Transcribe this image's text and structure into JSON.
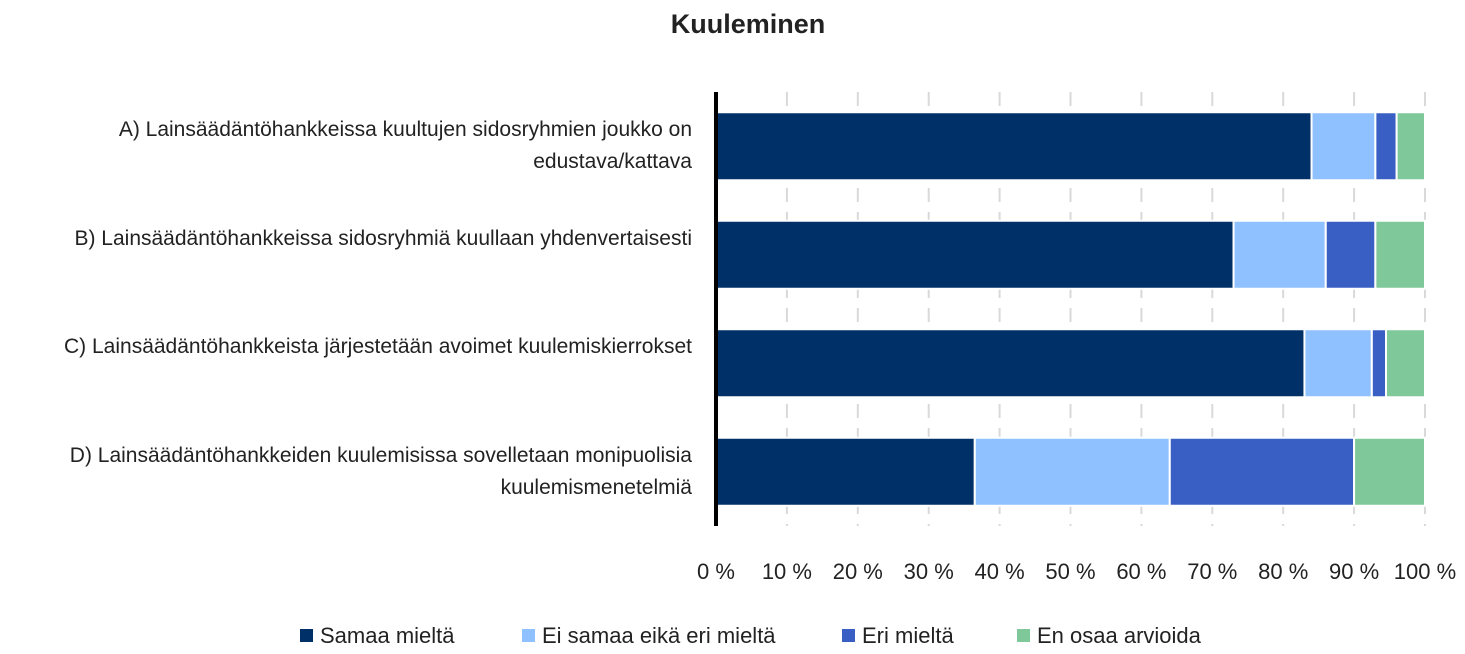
{
  "chart_data": {
    "type": "stacked_bar_horizontal",
    "title": "Kuuleminen",
    "categories": [
      "A) Lainsäädäntöhankkeissa kuultujen sidosryhmien joukko on edustava/kattava",
      "B) Lainsäädäntöhankkeissa sidosryhmiä kuullaan yhdenvertaisesti",
      "C) Lainsäädäntöhankkeista järjestetään avoimet kuulemiskierrokset",
      "D) Lainsäädäntöhankkeiden kuulemisissa sovelletaan monipuolisia kuulemismenetelmiä"
    ],
    "series": [
      {
        "name": "Samaa mieltä",
        "color": "#003068",
        "values": [
          84,
          73,
          83,
          36.5
        ]
      },
      {
        "name": "Ei samaa eikä eri mieltä",
        "color": "#8fc0ff",
        "values": [
          9,
          13,
          9.5,
          27.5
        ]
      },
      {
        "name": "Eri mieltä",
        "color": "#3a5fc4",
        "values": [
          3,
          7,
          2,
          26
        ]
      },
      {
        "name": "En osaa arvioida",
        "color": "#7ec89a",
        "values": [
          4,
          7,
          5.5,
          10
        ]
      }
    ],
    "xlim": [
      0,
      100
    ],
    "xticks": [
      {
        "value": 0,
        "label": "0 %"
      },
      {
        "value": 10,
        "label": "10 %"
      },
      {
        "value": 20,
        "label": "20 %"
      },
      {
        "value": 30,
        "label": "30 %"
      },
      {
        "value": 40,
        "label": "40 %"
      },
      {
        "value": 50,
        "label": "50 %"
      },
      {
        "value": 60,
        "label": "60 %"
      },
      {
        "value": 70,
        "label": "70 %"
      },
      {
        "value": 80,
        "label": "80 %"
      },
      {
        "value": 90,
        "label": "90 %"
      },
      {
        "value": 100,
        "label": "100 %"
      }
    ],
    "grid": true,
    "legend": "bottom"
  }
}
